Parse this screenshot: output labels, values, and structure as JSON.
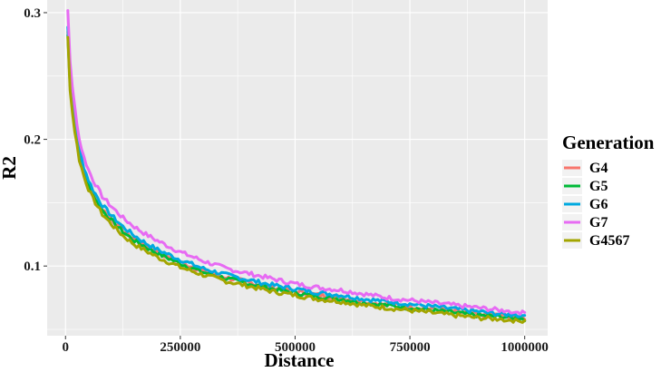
{
  "chart_data": {
    "type": "line",
    "xlabel": "Distance",
    "ylabel": "R2",
    "xlim": [
      -40000,
      1050000
    ],
    "ylim": [
      0.045,
      0.31
    ],
    "x_ticks": [
      0,
      250000,
      500000,
      750000,
      1000000
    ],
    "x_tick_labels": [
      "0",
      "250000",
      "500000",
      "750000",
      "1000000"
    ],
    "y_ticks": [
      0.1,
      0.2,
      0.3
    ],
    "y_tick_labels": [
      "0.1",
      "0.2",
      "0.3"
    ],
    "grid": true,
    "background": "#ebebeb",
    "grid_color": "#ffffff",
    "legend": {
      "title": "Generation",
      "placement": "right"
    },
    "x": [
      5000,
      10000,
      15000,
      20000,
      30000,
      40000,
      50000,
      60000,
      80000,
      100000,
      125000,
      150000,
      175000,
      200000,
      250000,
      300000,
      350000,
      400000,
      450000,
      500000,
      550000,
      600000,
      650000,
      700000,
      750000,
      800000,
      850000,
      900000,
      950000,
      1000000
    ],
    "series": [
      {
        "name": "G4",
        "color": "#F8766D",
        "values": [
          0.285,
          0.245,
          0.226,
          0.212,
          0.188,
          0.175,
          0.165,
          0.157,
          0.145,
          0.137,
          0.128,
          0.121,
          0.116,
          0.111,
          0.103,
          0.096,
          0.091,
          0.087,
          0.083,
          0.08,
          0.077,
          0.075,
          0.072,
          0.07,
          0.068,
          0.066,
          0.064,
          0.062,
          0.061,
          0.059
        ]
      },
      {
        "name": "G5",
        "color": "#00BA38",
        "values": [
          0.283,
          0.243,
          0.224,
          0.21,
          0.187,
          0.174,
          0.164,
          0.156,
          0.144,
          0.136,
          0.127,
          0.12,
          0.115,
          0.11,
          0.102,
          0.095,
          0.09,
          0.086,
          0.082,
          0.079,
          0.076,
          0.074,
          0.071,
          0.069,
          0.067,
          0.065,
          0.063,
          0.061,
          0.06,
          0.058
        ]
      },
      {
        "name": "G6",
        "color": "#00A9E0",
        "values": [
          0.29,
          0.25,
          0.23,
          0.216,
          0.192,
          0.178,
          0.168,
          0.16,
          0.148,
          0.14,
          0.131,
          0.124,
          0.118,
          0.113,
          0.105,
          0.098,
          0.093,
          0.089,
          0.085,
          0.082,
          0.079,
          0.077,
          0.074,
          0.072,
          0.07,
          0.068,
          0.066,
          0.064,
          0.062,
          0.061
        ]
      },
      {
        "name": "G7",
        "color": "#E76BF3",
        "values": [
          0.302,
          0.262,
          0.24,
          0.226,
          0.2,
          0.186,
          0.176,
          0.168,
          0.155,
          0.147,
          0.138,
          0.131,
          0.125,
          0.12,
          0.111,
          0.104,
          0.098,
          0.094,
          0.09,
          0.086,
          0.083,
          0.081,
          0.078,
          0.075,
          0.073,
          0.071,
          0.069,
          0.067,
          0.065,
          0.063
        ]
      },
      {
        "name": "G4567",
        "color": "#A3A500",
        "values": [
          0.28,
          0.24,
          0.221,
          0.207,
          0.184,
          0.171,
          0.161,
          0.153,
          0.141,
          0.133,
          0.124,
          0.117,
          0.112,
          0.107,
          0.099,
          0.093,
          0.088,
          0.084,
          0.08,
          0.077,
          0.074,
          0.072,
          0.069,
          0.067,
          0.065,
          0.063,
          0.061,
          0.059,
          0.058,
          0.056
        ]
      }
    ]
  }
}
